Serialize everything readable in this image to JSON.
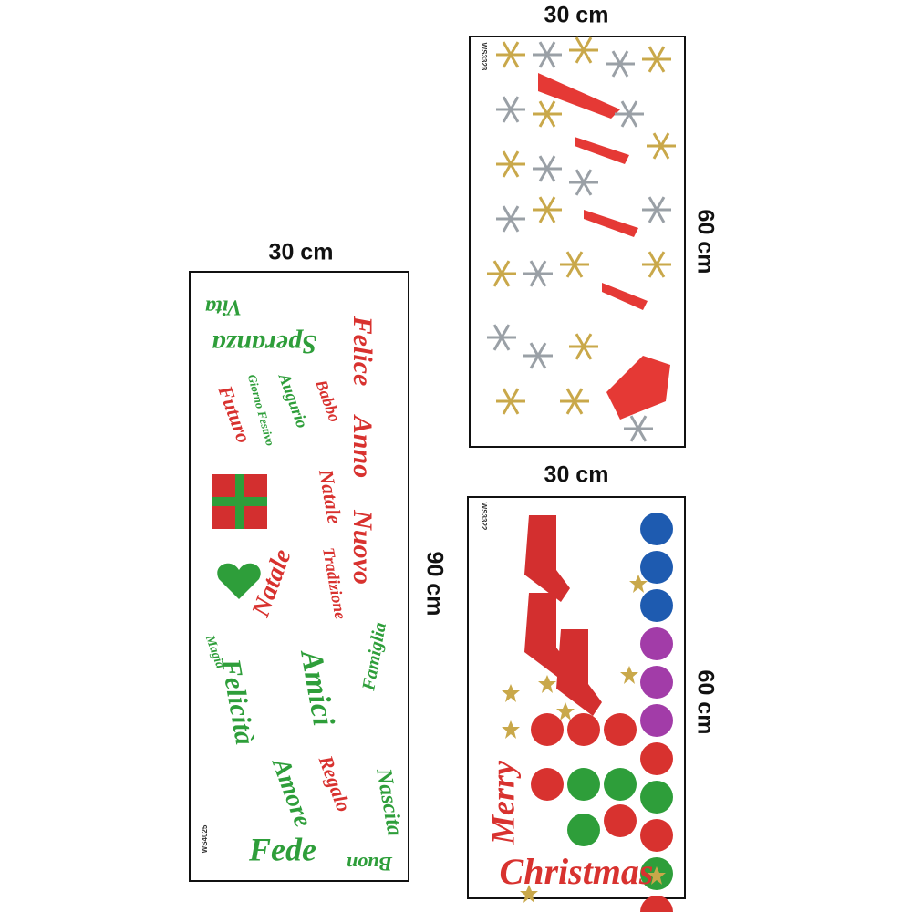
{
  "sheets": [
    {
      "width_label": "30 cm",
      "height_label": "90 cm",
      "code": "WS4025",
      "words": [
        "Vita",
        "Speranza",
        "Felice",
        "Anno",
        "Nuovo",
        "Babbo",
        "Natale",
        "Tradizione",
        "Giorno Festivo",
        "Augurio",
        "Futuro",
        "Natale",
        "Amici",
        "Felicità",
        "Famiglia",
        "Magia",
        "Amore",
        "Regalo",
        "Nascita",
        "Fede",
        "Buon"
      ]
    },
    {
      "width_label": "30 cm",
      "height_label": "60 cm",
      "code": "WS3323"
    },
    {
      "width_label": "30 cm",
      "height_label": "60 cm",
      "code": "WS3322",
      "words": [
        "Merry",
        "Christmas"
      ]
    }
  ]
}
